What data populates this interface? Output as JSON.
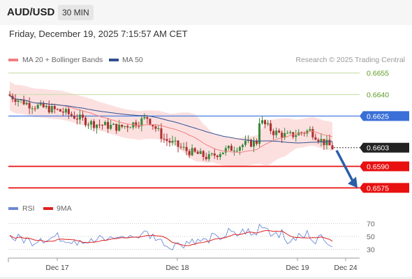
{
  "header": {
    "pair": "AUD/USD",
    "timeframe": "30 MIN"
  },
  "timestamp": "Friday, December 19, 2025 7:15:57 AM CET",
  "legend": {
    "ma20": {
      "label": "MA 20 + Bollinger Bands",
      "color": "#f08080"
    },
    "ma50": {
      "label": "MA 50",
      "color": "#2f4f8f"
    }
  },
  "credit": "Research © 2025 Trading Central",
  "rsi_legend": {
    "rsi": {
      "label": "RSI",
      "color": "#6b8ad6"
    },
    "ma9": {
      "label": "9MA",
      "color": "#e02020"
    }
  },
  "chart_data": {
    "type": "candlestick",
    "price_ylim": [
      0.6565,
      0.6665
    ],
    "levels": [
      {
        "value": 0.6655,
        "label": "0.6655",
        "style": "target"
      },
      {
        "value": 0.664,
        "label": "0.6640",
        "style": "target"
      },
      {
        "value": 0.6625,
        "label": "0.6625",
        "style": "pivot"
      },
      {
        "value": 0.6603,
        "label": "0.6603",
        "style": "last"
      },
      {
        "value": 0.659,
        "label": "0.6590",
        "style": "support"
      },
      {
        "value": 0.6575,
        "label": "0.6575",
        "style": "support"
      }
    ],
    "x_ticks": [
      "Dec 17",
      "Dec 18",
      "Dec 19",
      "Dec 24"
    ],
    "rsi": {
      "ylim": [
        25,
        75
      ],
      "ticks": [
        "70",
        "50",
        "30"
      ]
    },
    "forecast_arrow": {
      "from": 0.6603,
      "to": 0.6575
    }
  }
}
